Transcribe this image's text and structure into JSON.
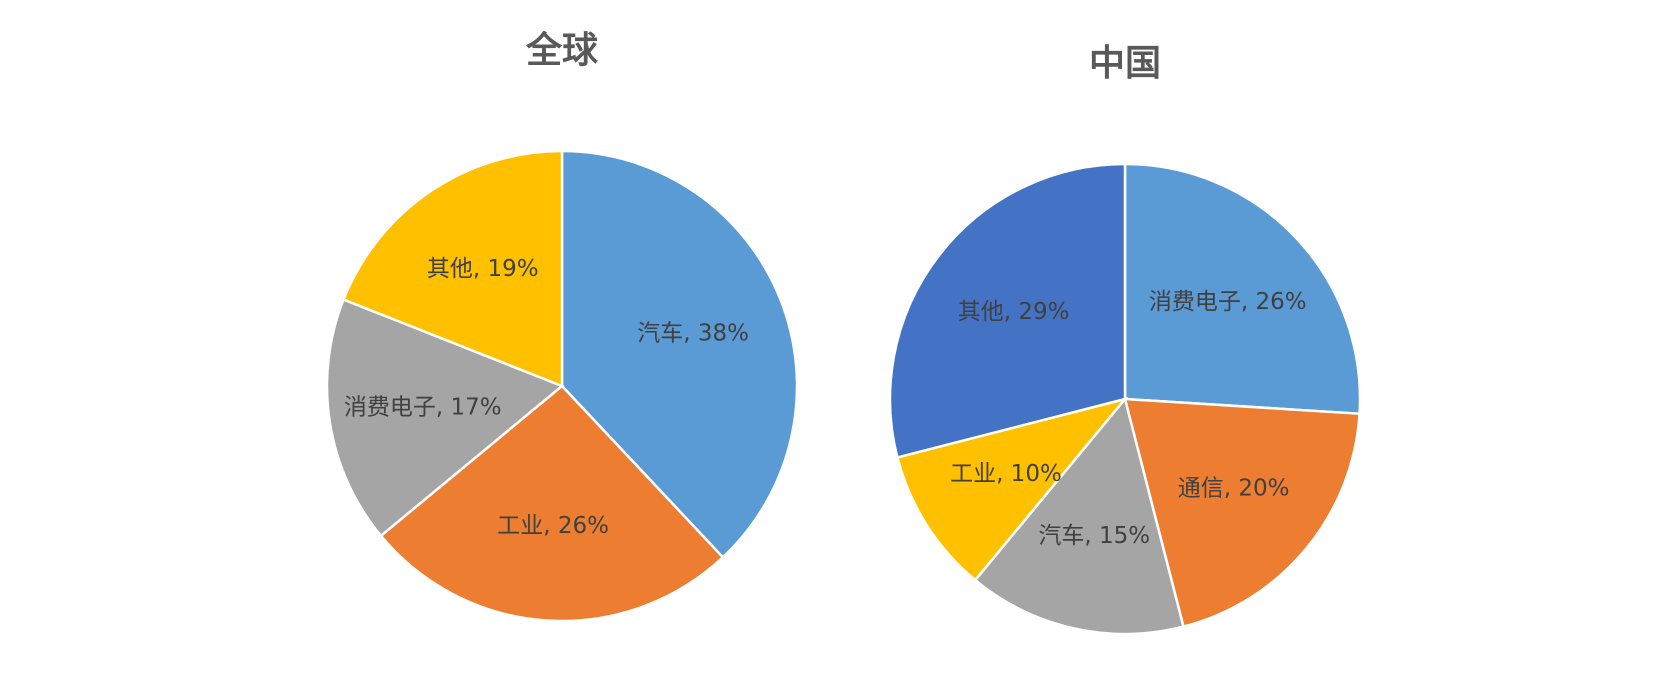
{
  "chart_data": [
    {
      "type": "pie",
      "title": "全球",
      "categories": [
        "汽车",
        "工业",
        "消费电子",
        "其他"
      ],
      "values": [
        38,
        26,
        17,
        19
      ],
      "value_labels": [
        "汽车, 38%",
        "工业, 26%",
        "消费电子, 17%",
        "其他, 19%"
      ],
      "colors": [
        "#5b9bd5",
        "#ed7d31",
        "#a5a5a5",
        "#ffc000"
      ]
    },
    {
      "type": "pie",
      "title": "中国",
      "categories": [
        "消费电子",
        "通信",
        "汽车",
        "工业",
        "其他"
      ],
      "values": [
        26,
        20,
        15,
        10,
        29
      ],
      "value_labels": [
        "消费电子, 26%",
        "通信, 20%",
        "汽车, 15%",
        "工业, 10%",
        "其他, 29%"
      ],
      "colors": [
        "#5b9bd5",
        "#ed7d31",
        "#a5a5a5",
        "#ffc000",
        "#4472c4"
      ]
    }
  ]
}
